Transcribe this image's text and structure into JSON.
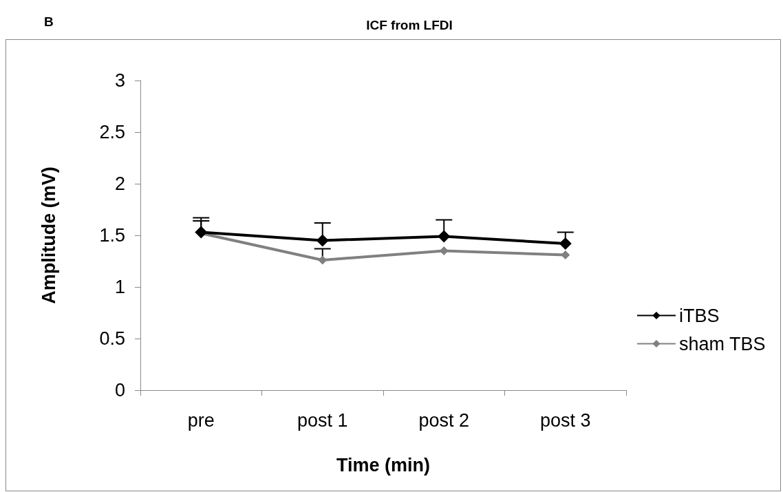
{
  "chart_data": {
    "type": "line",
    "title": "ICF from LFDI",
    "annotations": [
      "B"
    ],
    "xlabel": "Time (min)",
    "ylabel": "Amplitude (mV)",
    "categories": [
      "pre",
      "post 1",
      "post 2",
      "post 3"
    ],
    "series": [
      {
        "name": "iTBS",
        "color": "#000000",
        "values": [
          1.53,
          1.45,
          1.49,
          1.42
        ],
        "errors": [
          [
            1.53,
            1.67
          ],
          [
            1.45,
            1.62
          ],
          [
            1.49,
            1.65
          ],
          [
            1.42,
            1.53
          ]
        ]
      },
      {
        "name": "sham TBS",
        "color": "#808080",
        "values": [
          1.52,
          1.26,
          1.35,
          1.31
        ],
        "errors": [
          [
            1.52,
            1.64
          ],
          [
            1.26,
            1.37
          ],
          null,
          null
        ]
      }
    ],
    "ylim": [
      0,
      3
    ],
    "yticks": [
      0,
      0.5,
      1,
      1.5,
      2,
      2.5,
      3
    ],
    "grid": false,
    "legend": "right",
    "marker": "diamond",
    "line_style": "solid"
  }
}
